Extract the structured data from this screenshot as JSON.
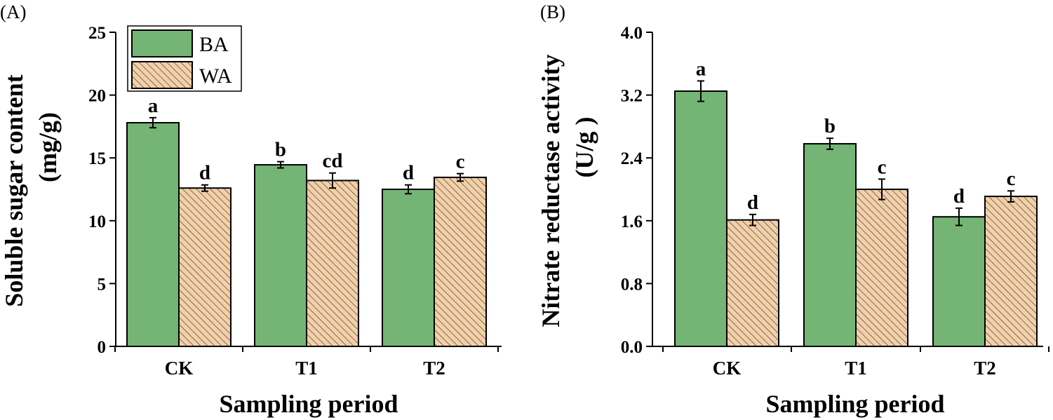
{
  "chart_data": [
    {
      "type": "bar",
      "panel": "(A)",
      "categories": [
        "CK",
        "T1",
        "T2"
      ],
      "series": [
        {
          "name": "BA",
          "values": [
            17.8,
            14.45,
            12.5
          ],
          "errors": [
            0.4,
            0.25,
            0.35
          ],
          "labels": [
            "a",
            "b",
            "d"
          ]
        },
        {
          "name": "WA",
          "values": [
            12.6,
            13.2,
            13.45
          ],
          "errors": [
            0.25,
            0.6,
            0.3
          ],
          "labels": [
            "d",
            "cd",
            "c"
          ]
        }
      ],
      "xlabel": "Sampling period",
      "ylabel_lines": [
        "Soluble sugar content",
        "(mg/g)"
      ],
      "ylim": [
        0,
        25
      ],
      "yticks": [
        0,
        5,
        10,
        15,
        20,
        25
      ],
      "ytick_labels": [
        "0",
        "5",
        "10",
        "15",
        "20",
        "25"
      ],
      "legend": "top-left"
    },
    {
      "type": "bar",
      "panel": "(B)",
      "categories": [
        "CK",
        "T1",
        "T2"
      ],
      "series": [
        {
          "name": "BA",
          "values": [
            3.25,
            2.58,
            1.65
          ],
          "errors": [
            0.13,
            0.07,
            0.11
          ],
          "labels": [
            "a",
            "b",
            "d"
          ]
        },
        {
          "name": "WA",
          "values": [
            1.61,
            2.0,
            1.91
          ],
          "errors": [
            0.07,
            0.13,
            0.07
          ],
          "labels": [
            "d",
            "c",
            "c"
          ]
        }
      ],
      "xlabel": "Sampling period",
      "ylabel_lines": [
        "Nitrate reductase activity",
        "(U/g )"
      ],
      "ylim": [
        0,
        4
      ],
      "yticks": [
        0,
        0.8,
        1.6,
        2.4,
        3.2,
        4.0
      ],
      "ytick_labels": [
        "0.0",
        "0.8",
        "1.6",
        "2.4",
        "3.2",
        "4.0"
      ],
      "legend": "none"
    }
  ],
  "colors": {
    "BA": "#74b474",
    "WA": "#f2d0a9",
    "hatch": "#5a4a3a",
    "axis": "#000000"
  }
}
